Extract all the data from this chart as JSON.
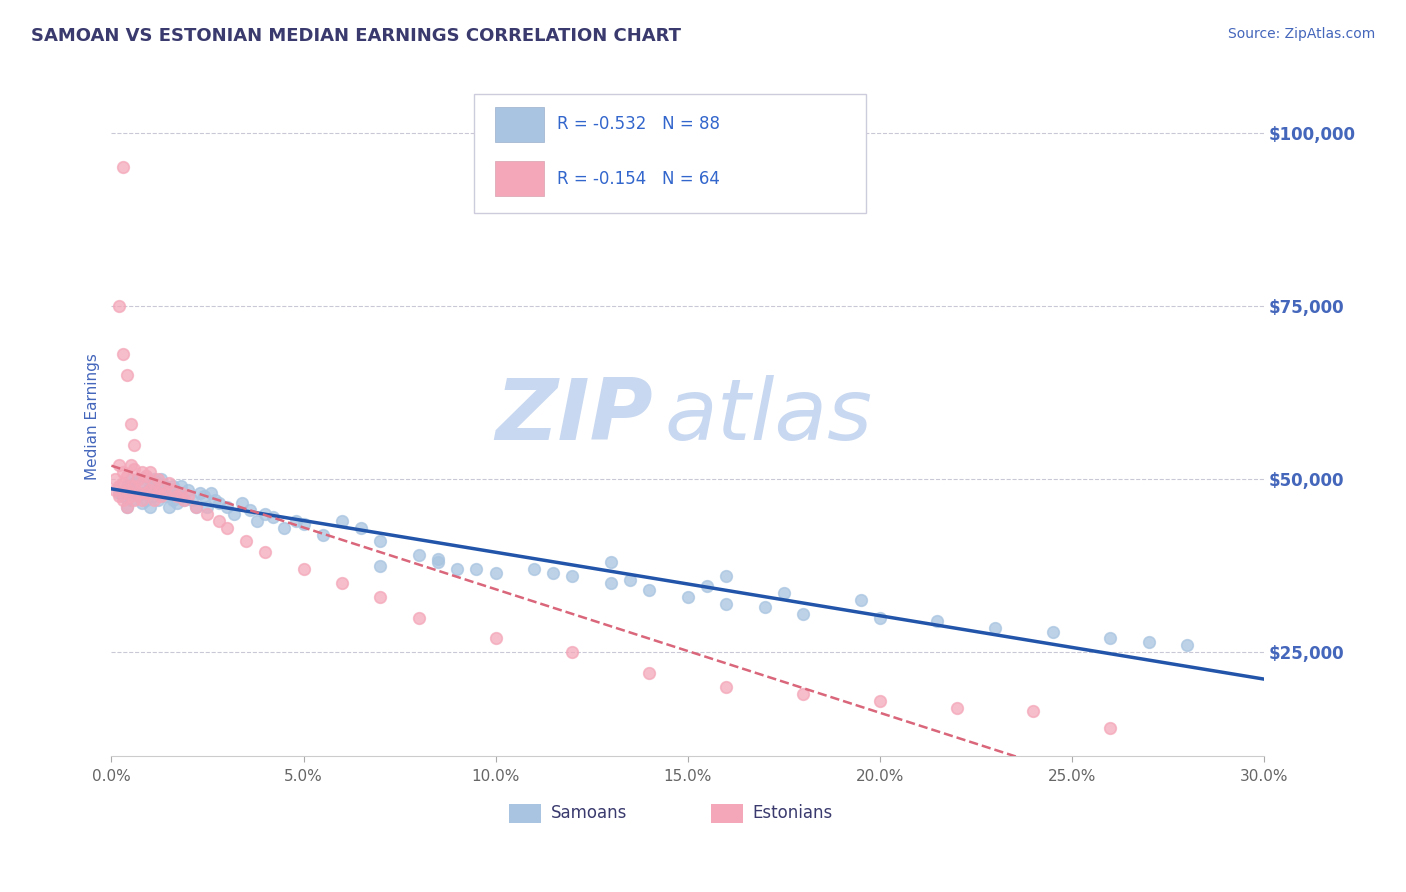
{
  "title": "SAMOAN VS ESTONIAN MEDIAN EARNINGS CORRELATION CHART",
  "source_text": "Source: ZipAtlas.com",
  "ylabel": "Median Earnings",
  "watermark_zip": "ZIP",
  "watermark_atlas": "atlas",
  "xlim": [
    0.0,
    0.3
  ],
  "ylim": [
    10000,
    108000
  ],
  "xtick_labels": [
    "0.0%",
    "5.0%",
    "10.0%",
    "15.0%",
    "20.0%",
    "25.0%",
    "30.0%"
  ],
  "xtick_values": [
    0.0,
    0.05,
    0.1,
    0.15,
    0.2,
    0.25,
    0.3
  ],
  "ytick_values": [
    25000,
    50000,
    75000,
    100000
  ],
  "ytick_labels": [
    "$25,000",
    "$50,000",
    "$75,000",
    "$100,000"
  ],
  "samoan_color": "#a8c4e0",
  "estonian_color": "#f4a7b9",
  "samoan_line_color": "#2255aa",
  "estonian_line_color": "#d9667a",
  "legend_text1": "R = -0.532   N = 88",
  "legend_text2": "R = -0.154   N = 64",
  "legend_label1": "Samoans",
  "legend_label2": "Estonians",
  "title_color": "#3a3a6e",
  "legend_text_color": "#3366cc",
  "axis_label_color": "#4466bb",
  "ytick_color": "#4466bb",
  "xtick_color": "#666666",
  "watermark_color": "#c8d8f0",
  "grid_color": "#bbbbcc",
  "samoan_x": [
    0.002,
    0.003,
    0.004,
    0.004,
    0.005,
    0.005,
    0.005,
    0.006,
    0.006,
    0.007,
    0.007,
    0.008,
    0.008,
    0.008,
    0.009,
    0.009,
    0.01,
    0.01,
    0.01,
    0.011,
    0.011,
    0.012,
    0.012,
    0.013,
    0.013,
    0.014,
    0.014,
    0.015,
    0.015,
    0.016,
    0.016,
    0.017,
    0.017,
    0.018,
    0.018,
    0.019,
    0.02,
    0.021,
    0.022,
    0.023,
    0.024,
    0.025,
    0.026,
    0.027,
    0.028,
    0.03,
    0.032,
    0.034,
    0.036,
    0.038,
    0.04,
    0.042,
    0.045,
    0.048,
    0.05,
    0.055,
    0.06,
    0.065,
    0.07,
    0.08,
    0.085,
    0.09,
    0.1,
    0.11,
    0.12,
    0.13,
    0.14,
    0.15,
    0.16,
    0.17,
    0.18,
    0.2,
    0.215,
    0.23,
    0.245,
    0.26,
    0.27,
    0.28,
    0.16,
    0.13,
    0.085,
    0.07,
    0.095,
    0.115,
    0.135,
    0.155,
    0.175,
    0.195
  ],
  "samoan_y": [
    48000,
    47500,
    49000,
    46000,
    50000,
    48500,
    47000,
    49500,
    48000,
    50000,
    47500,
    49000,
    48000,
    46500,
    50500,
    47000,
    49000,
    48500,
    46000,
    50000,
    47500,
    49500,
    47000,
    50000,
    48000,
    49000,
    47500,
    48500,
    46000,
    49000,
    47000,
    48000,
    46500,
    47500,
    49000,
    47000,
    48500,
    47000,
    46000,
    48000,
    47500,
    46000,
    48000,
    47000,
    46500,
    46000,
    45000,
    46500,
    45500,
    44000,
    45000,
    44500,
    43000,
    44000,
    43500,
    42000,
    44000,
    43000,
    41000,
    39000,
    38000,
    37000,
    36500,
    37000,
    36000,
    35000,
    34000,
    33000,
    32000,
    31500,
    30500,
    30000,
    29500,
    28500,
    28000,
    27000,
    26500,
    26000,
    36000,
    38000,
    38500,
    37500,
    37000,
    36500,
    35500,
    34500,
    33500,
    32500
  ],
  "estonian_x": [
    0.001,
    0.001,
    0.002,
    0.002,
    0.002,
    0.003,
    0.003,
    0.003,
    0.004,
    0.004,
    0.004,
    0.005,
    0.005,
    0.005,
    0.006,
    0.006,
    0.006,
    0.007,
    0.007,
    0.008,
    0.008,
    0.008,
    0.009,
    0.009,
    0.01,
    0.01,
    0.011,
    0.011,
    0.012,
    0.012,
    0.013,
    0.013,
    0.014,
    0.015,
    0.016,
    0.017,
    0.018,
    0.019,
    0.02,
    0.022,
    0.025,
    0.028,
    0.03,
    0.035,
    0.04,
    0.05,
    0.06,
    0.07,
    0.08,
    0.1,
    0.12,
    0.14,
    0.16,
    0.18,
    0.2,
    0.22,
    0.24,
    0.26,
    0.002,
    0.003,
    0.003,
    0.004,
    0.005,
    0.006
  ],
  "estonian_y": [
    50000,
    48500,
    52000,
    49000,
    47500,
    51000,
    49500,
    47000,
    50500,
    48500,
    46000,
    52000,
    49000,
    47500,
    51500,
    49000,
    47000,
    50000,
    48000,
    51000,
    49500,
    47000,
    50500,
    48000,
    51000,
    48500,
    49500,
    47000,
    50000,
    48000,
    49000,
    47500,
    48000,
    49500,
    48500,
    47500,
    48000,
    47000,
    47500,
    46000,
    45000,
    44000,
    43000,
    41000,
    39500,
    37000,
    35000,
    33000,
    30000,
    27000,
    25000,
    22000,
    20000,
    19000,
    18000,
    17000,
    16500,
    14000,
    75000,
    68000,
    95000,
    65000,
    58000,
    55000
  ]
}
